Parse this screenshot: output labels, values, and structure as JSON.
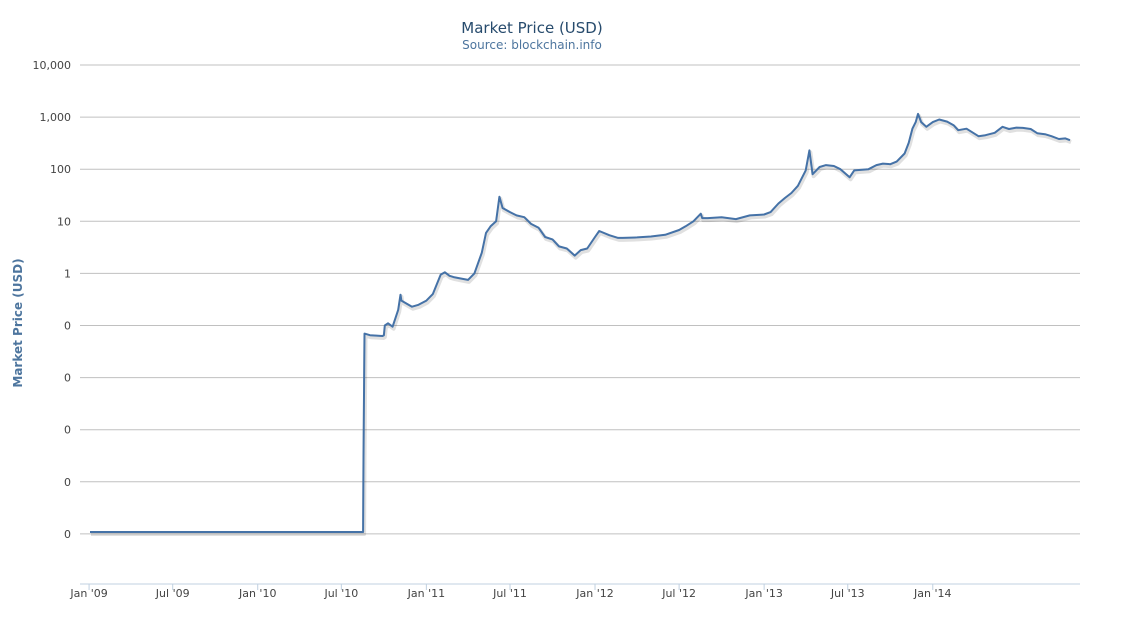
{
  "chart_data": {
    "type": "line",
    "title": "Market Price (USD)",
    "subtitle": "Source: blockchain.info",
    "xlabel": "",
    "ylabel": "Market Price (USD)",
    "y_scale": "log",
    "xlim": [
      "2009-01-03",
      "2014-10-25"
    ],
    "y_tick_labels": [
      "10,000",
      "1,000",
      "100",
      "10",
      "1",
      "0",
      "0",
      "0",
      "0",
      "0"
    ],
    "x_tick_labels": [
      "Jan '09",
      "Jul '09",
      "Jan '10",
      "Jul '10",
      "Jan '11",
      "Jul '11",
      "Jan '12",
      "Jul '12",
      "Jan '13",
      "Jul '13",
      "Jan '14"
    ],
    "x_tick_dates": [
      "2009-01-01",
      "2009-07-01",
      "2010-01-01",
      "2010-07-01",
      "2011-01-01",
      "2011-07-01",
      "2012-01-01",
      "2012-07-01",
      "2013-01-01",
      "2013-07-01",
      "2014-01-01"
    ],
    "grid": true,
    "legend": "none",
    "color": "#4572a7",
    "series": [
      {
        "x": [
          "2009-01-03",
          "2010-08-17",
          "2010-08-18",
          "2010-08-20",
          "2010-09-01",
          "2010-09-15",
          "2010-09-28",
          "2010-10-01",
          "2010-10-03",
          "2010-10-10",
          "2010-10-20",
          "2010-11-01",
          "2010-11-06",
          "2010-11-08",
          "2010-11-20",
          "2010-12-01",
          "2010-12-15",
          "2011-01-01",
          "2011-01-15",
          "2011-02-01",
          "2011-02-10",
          "2011-02-20",
          "2011-03-01",
          "2011-03-15",
          "2011-04-01",
          "2011-04-15",
          "2011-05-01",
          "2011-05-10",
          "2011-05-20",
          "2011-06-01",
          "2011-06-08",
          "2011-06-15",
          "2011-07-01",
          "2011-07-15",
          "2011-08-01",
          "2011-08-15",
          "2011-09-01",
          "2011-09-15",
          "2011-10-01",
          "2011-10-15",
          "2011-11-01",
          "2011-11-18",
          "2011-12-01",
          "2011-12-15",
          "2012-01-01",
          "2012-01-10",
          "2012-02-01",
          "2012-02-20",
          "2012-03-01",
          "2012-04-01",
          "2012-05-01",
          "2012-06-01",
          "2012-07-01",
          "2012-07-15",
          "2012-08-01",
          "2012-08-17",
          "2012-08-20",
          "2012-09-01",
          "2012-10-01",
          "2012-11-01",
          "2012-12-01",
          "2013-01-01",
          "2013-01-15",
          "2013-02-01",
          "2013-02-15",
          "2013-03-01",
          "2013-03-15",
          "2013-04-01",
          "2013-04-09",
          "2013-04-16",
          "2013-05-01",
          "2013-05-15",
          "2013-06-01",
          "2013-06-15",
          "2013-07-05",
          "2013-07-15",
          "2013-08-01",
          "2013-08-15",
          "2013-09-01",
          "2013-09-15",
          "2013-10-01",
          "2013-10-15",
          "2013-11-01",
          "2013-11-10",
          "2013-11-18",
          "2013-11-25",
          "2013-11-30",
          "2013-12-07",
          "2013-12-18",
          "2014-01-01",
          "2014-01-15",
          "2014-02-01",
          "2014-02-15",
          "2014-02-25",
          "2014-03-15",
          "2014-04-10",
          "2014-04-25",
          "2014-05-15",
          "2014-06-01",
          "2014-06-15",
          "2014-07-01",
          "2014-07-15",
          "2014-08-01",
          "2014-08-15",
          "2014-09-01",
          "2014-09-15",
          "2014-10-01",
          "2014-10-15",
          "2014-10-25"
        ],
        "y": [
          1e-08,
          1e-08,
          0.0003,
          0.07,
          0.065,
          0.064,
          0.063,
          0.065,
          0.1,
          0.11,
          0.095,
          0.2,
          0.39,
          0.3,
          0.26,
          0.23,
          0.25,
          0.3,
          0.4,
          0.95,
          1.05,
          0.9,
          0.85,
          0.8,
          0.75,
          1.0,
          2.5,
          6.0,
          8.0,
          10.0,
          29.6,
          18,
          15,
          13,
          12,
          9,
          7.5,
          5,
          4.5,
          3.3,
          3.0,
          2.2,
          2.8,
          3.0,
          5.0,
          6.5,
          5.4,
          4.8,
          4.8,
          4.9,
          5.1,
          5.5,
          6.8,
          8.0,
          10.0,
          14.0,
          11.5,
          11.5,
          12.0,
          11.0,
          13.0,
          13.5,
          15.0,
          22.0,
          28.0,
          35.0,
          48.0,
          95.0,
          230.0,
          80.0,
          110.0,
          120.0,
          115.0,
          100.0,
          70.0,
          95.0,
          98.0,
          100.0,
          120.0,
          128.0,
          125.0,
          140.0,
          200.0,
          320.0,
          600.0,
          800.0,
          1150.0,
          800.0,
          650.0,
          800.0,
          900.0,
          820.0,
          700.0,
          560.0,
          600.0,
          430.0,
          450.0,
          500.0,
          650.0,
          590.0,
          630.0,
          620.0,
          590.0,
          490.0,
          470.0,
          430.0,
          380.0,
          390.0,
          360.0
        ]
      }
    ]
  }
}
